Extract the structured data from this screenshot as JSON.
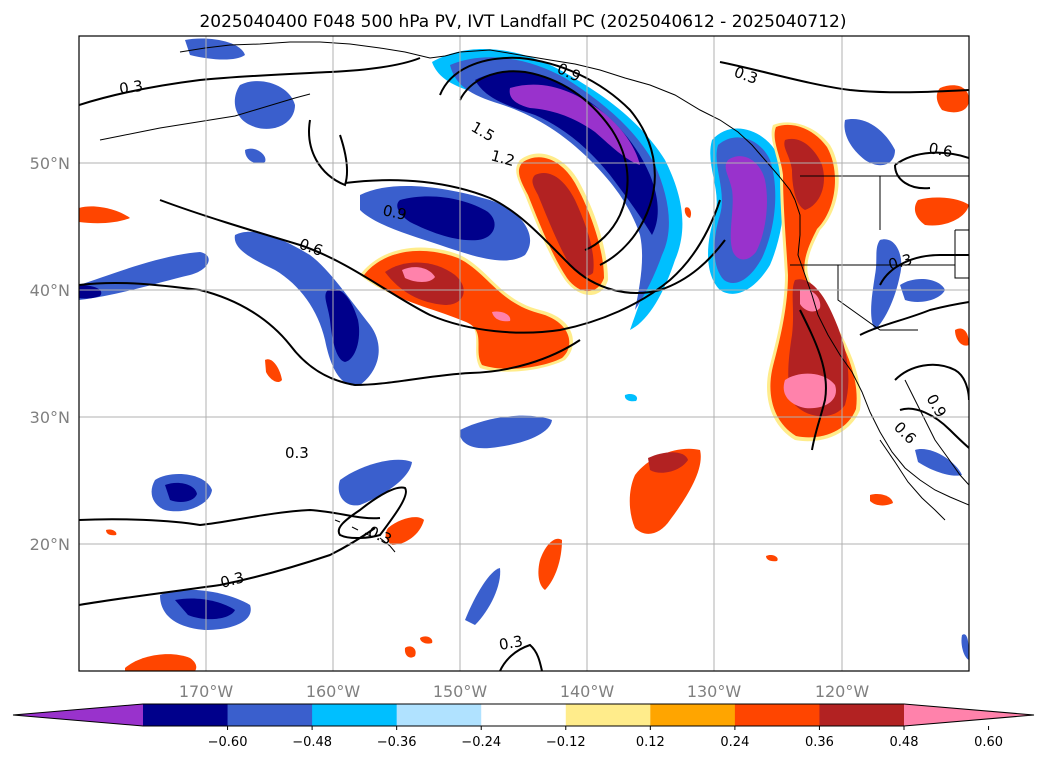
{
  "title": "2025040400 F048 500 hPa PV, IVT Landfall PC (2025040612 - 2025040712)",
  "map": {
    "lon_range": [
      -180,
      -110
    ],
    "lat_range": [
      10,
      60
    ],
    "lon_ticks": [
      "170°W",
      "160°W",
      "150°W",
      "140°W",
      "130°W",
      "120°W"
    ],
    "lat_ticks": [
      "50°N",
      "40°N",
      "30°N",
      "20°N"
    ],
    "grid": true
  },
  "colorbar": {
    "levels": [
      "−0.60",
      "−0.48",
      "−0.36",
      "−0.24",
      "−0.12",
      "0.12",
      "0.24",
      "0.36",
      "0.48",
      "0.60"
    ],
    "colors": [
      "#9932cc",
      "#00008b",
      "#3a5fcd",
      "#00bfff",
      "#b0e2ff",
      "#ffffff",
      "#ffec8b",
      "#ffa500",
      "#ff4500",
      "#b22222",
      "#ff82ab"
    ],
    "extend": "both"
  },
  "contour_labels": [
    "0.3",
    "0.3",
    "0.9",
    "1.5",
    "1.2",
    "0.9",
    "0.6",
    "0.6",
    "0.3",
    "0.3",
    "0.3",
    "0.3",
    "0.3",
    "0.9",
    "0.6"
  ]
}
